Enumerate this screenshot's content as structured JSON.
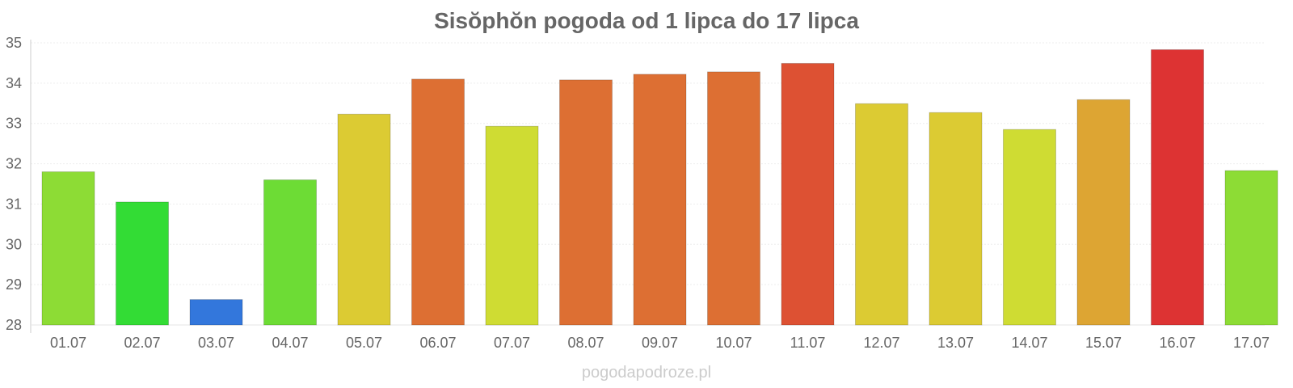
{
  "chart_data": {
    "type": "bar",
    "title": "Sisŏphŏn pogoda od 1 lipca do 17 lipca",
    "categories": [
      "01.07",
      "02.07",
      "03.07",
      "04.07",
      "05.07",
      "06.07",
      "07.07",
      "08.07",
      "09.07",
      "10.07",
      "11.07",
      "12.07",
      "13.07",
      "14.07",
      "15.07",
      "16.07",
      "17.07"
    ],
    "values": [
      31.8,
      31.05,
      28.63,
      31.6,
      33.23,
      34.1,
      32.93,
      34.08,
      34.22,
      34.28,
      34.49,
      33.49,
      33.27,
      32.85,
      33.59,
      34.83,
      31.83
    ],
    "bar_colors": [
      "#8ddc35",
      "#33dc35",
      "#3377dc",
      "#6ddc35",
      "#dccb33",
      "#dd6f33",
      "#cfdc33",
      "#dd6f33",
      "#dd6f33",
      "#dd6f33",
      "#dd5133",
      "#dccb33",
      "#dccb33",
      "#cfdc33",
      "#dda533",
      "#dd3333",
      "#8ddc35"
    ],
    "ylim": [
      28,
      35
    ],
    "yticks": [
      28,
      29,
      30,
      31,
      32,
      33,
      34,
      35
    ],
    "xlabel": "",
    "ylabel": "",
    "grid": true,
    "legend": "none"
  },
  "watermark": "pogodapodroze.pl"
}
